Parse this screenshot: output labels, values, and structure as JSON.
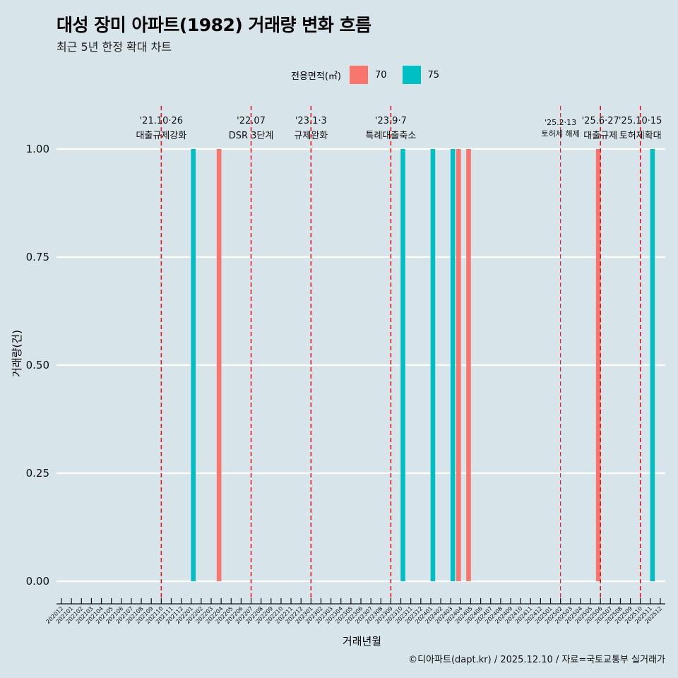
{
  "title": "대성 장미 아파트(1982) 거래량 변화 흐름",
  "subtitle": "최근 5년 한정 확대 차트",
  "caption": "©디아파트(dapt.kr) / 2025.12.10 / 자료=국토교통부 실거래가",
  "chart_data": {
    "type": "bar",
    "xlabel": "거래년월",
    "ylabel": "거래량(건)",
    "ylim": [
      0,
      1
    ],
    "yticks": [
      "0.00",
      "0.25",
      "0.50",
      "0.75",
      "1.00"
    ],
    "legend": {
      "title": "전용면적(㎡)",
      "placement": "top",
      "entries": [
        {
          "name": "70",
          "color": "#f8766d"
        },
        {
          "name": "75",
          "color": "#00bfc4"
        }
      ]
    },
    "x": [
      "202012",
      "202101",
      "202102",
      "202103",
      "202104",
      "202105",
      "202106",
      "202107",
      "202108",
      "202109",
      "202110",
      "202111",
      "202112",
      "202201",
      "202202",
      "202203",
      "202204",
      "202205",
      "202206",
      "202207",
      "202208",
      "202209",
      "202210",
      "202211",
      "202212",
      "202301",
      "202302",
      "202303",
      "202304",
      "202305",
      "202306",
      "202307",
      "202308",
      "202309",
      "202310",
      "202311",
      "202312",
      "202401",
      "202402",
      "202403",
      "202404",
      "202405",
      "202406",
      "202407",
      "202408",
      "202409",
      "202410",
      "202411",
      "202412",
      "202501",
      "202502",
      "202503",
      "202504",
      "202505",
      "202506",
      "202507",
      "202508",
      "202509",
      "202510",
      "202511",
      "202512"
    ],
    "series": [
      {
        "name": "70",
        "points": [
          {
            "x": "202204",
            "y": 1
          },
          {
            "x": "202404",
            "y": 1
          },
          {
            "x": "202405",
            "y": 1
          },
          {
            "x": "202506",
            "y": 1
          }
        ]
      },
      {
        "name": "75",
        "points": [
          {
            "x": "202201",
            "y": 1
          },
          {
            "x": "202310",
            "y": 1
          },
          {
            "x": "202401",
            "y": 1
          },
          {
            "x": "202403",
            "y": 1
          },
          {
            "x": "202511",
            "y": 1
          }
        ]
      }
    ],
    "annotations": [
      {
        "x": "202110",
        "date": "'21.10·26",
        "label": "대출규제강화",
        "small": false
      },
      {
        "x": "202207",
        "date": "'22.07",
        "label": "DSR 3단계",
        "small": false
      },
      {
        "x": "202301",
        "date": "'23.1·3",
        "label": "규제완화",
        "small": false
      },
      {
        "x": "202309",
        "date": "'23.9·7",
        "label": "특례대출축소",
        "small": false
      },
      {
        "x": "202502",
        "date": "'25.2·13",
        "label": "토허제 해제",
        "small": true
      },
      {
        "x": "202506",
        "date": "'25.6·27",
        "label": "대출규제",
        "small": false
      },
      {
        "x": "202510",
        "date": "'25.10·15",
        "label": "토허제확대",
        "small": false
      }
    ]
  }
}
